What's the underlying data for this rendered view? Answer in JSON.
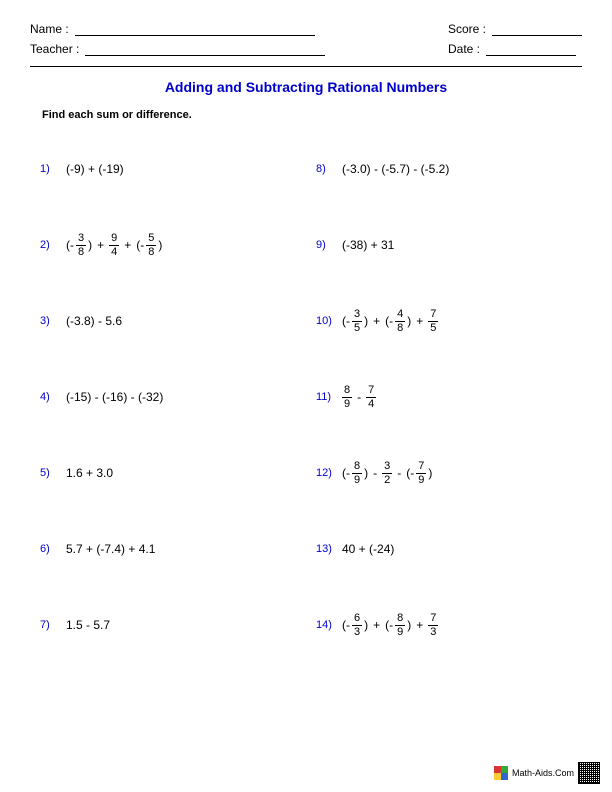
{
  "header": {
    "name_label": "Name :",
    "teacher_label": "Teacher :",
    "score_label": "Score :",
    "date_label": "Date :"
  },
  "title": "Adding and Subtracting Rational Numbers",
  "instructions": "Find each sum or difference.",
  "colors": {
    "accent": "#0000cc",
    "text": "#000000",
    "background": "#ffffff"
  },
  "problems_left": [
    {
      "n": "1)",
      "parts": [
        {
          "t": "txt",
          "v": "(-9) + (-19)"
        }
      ]
    },
    {
      "n": "2)",
      "parts": [
        {
          "t": "txt",
          "v": "(-"
        },
        {
          "t": "frac",
          "num": "3",
          "den": "8"
        },
        {
          "t": "txt",
          "v": " )"
        },
        {
          "t": "op",
          "v": "+"
        },
        {
          "t": "frac",
          "num": "9",
          "den": "4"
        },
        {
          "t": "op",
          "v": "+"
        },
        {
          "t": "txt",
          "v": "(-"
        },
        {
          "t": "frac",
          "num": "5",
          "den": "8"
        },
        {
          "t": "txt",
          "v": " )"
        }
      ]
    },
    {
      "n": "3)",
      "parts": [
        {
          "t": "txt",
          "v": "(-3.8) - 5.6"
        }
      ]
    },
    {
      "n": "4)",
      "parts": [
        {
          "t": "txt",
          "v": "(-15) - (-16) - (-32)"
        }
      ]
    },
    {
      "n": "5)",
      "parts": [
        {
          "t": "txt",
          "v": "1.6 + 3.0"
        }
      ]
    },
    {
      "n": "6)",
      "parts": [
        {
          "t": "txt",
          "v": "5.7 + (-7.4) + 4.1"
        }
      ]
    },
    {
      "n": "7)",
      "parts": [
        {
          "t": "txt",
          "v": "1.5 - 5.7"
        }
      ]
    }
  ],
  "problems_right": [
    {
      "n": "8)",
      "parts": [
        {
          "t": "txt",
          "v": "(-3.0) - (-5.7) - (-5.2)"
        }
      ]
    },
    {
      "n": "9)",
      "parts": [
        {
          "t": "txt",
          "v": "(-38) + 31"
        }
      ]
    },
    {
      "n": "10)",
      "parts": [
        {
          "t": "txt",
          "v": "(-"
        },
        {
          "t": "frac",
          "num": "3",
          "den": "5"
        },
        {
          "t": "txt",
          "v": " )"
        },
        {
          "t": "op",
          "v": "+"
        },
        {
          "t": "txt",
          "v": "(-"
        },
        {
          "t": "frac",
          "num": "4",
          "den": "8"
        },
        {
          "t": "txt",
          "v": " )"
        },
        {
          "t": "op",
          "v": "+"
        },
        {
          "t": "frac",
          "num": "7",
          "den": "5"
        }
      ]
    },
    {
      "n": "11)",
      "parts": [
        {
          "t": "frac",
          "num": "8",
          "den": "9"
        },
        {
          "t": "op",
          "v": "-"
        },
        {
          "t": "frac",
          "num": "7",
          "den": "4"
        }
      ]
    },
    {
      "n": "12)",
      "parts": [
        {
          "t": "txt",
          "v": "(-"
        },
        {
          "t": "frac",
          "num": "8",
          "den": "9"
        },
        {
          "t": "txt",
          "v": " )"
        },
        {
          "t": "op",
          "v": "-"
        },
        {
          "t": "frac",
          "num": "3",
          "den": "2"
        },
        {
          "t": "op",
          "v": "-"
        },
        {
          "t": "txt",
          "v": "(-"
        },
        {
          "t": "frac",
          "num": "7",
          "den": "9"
        },
        {
          "t": "txt",
          "v": " )"
        }
      ]
    },
    {
      "n": "13)",
      "parts": [
        {
          "t": "txt",
          "v": "40 + (-24)"
        }
      ]
    },
    {
      "n": "14)",
      "parts": [
        {
          "t": "txt",
          "v": "(-"
        },
        {
          "t": "frac",
          "num": "6",
          "den": "3"
        },
        {
          "t": "txt",
          "v": " )"
        },
        {
          "t": "op",
          "v": "+"
        },
        {
          "t": "txt",
          "v": "(-"
        },
        {
          "t": "frac",
          "num": "8",
          "den": "9"
        },
        {
          "t": "txt",
          "v": " )"
        },
        {
          "t": "op",
          "v": "+"
        },
        {
          "t": "frac",
          "num": "7",
          "den": "3"
        }
      ]
    }
  ],
  "footer": {
    "site": "Math-Aids.Com"
  }
}
